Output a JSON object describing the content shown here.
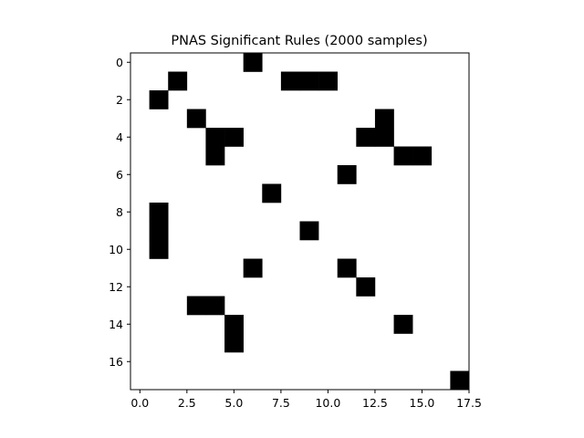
{
  "chart_data": {
    "type": "heatmap",
    "title": "PNAS Significant Rules (2000 samples)",
    "xlabel": "",
    "ylabel": "",
    "n_rows": 18,
    "n_cols": 18,
    "xlim": [
      -0.5,
      17.5
    ],
    "ylim": [
      17.5,
      -0.5
    ],
    "x_ticks": [
      0.0,
      2.5,
      5.0,
      7.5,
      10.0,
      12.5,
      15.0,
      17.5
    ],
    "x_tick_labels": [
      "0.0",
      "2.5",
      "5.0",
      "7.5",
      "10.0",
      "12.5",
      "15.0",
      "17.5"
    ],
    "y_ticks": [
      0,
      2,
      4,
      6,
      8,
      10,
      12,
      14,
      16
    ],
    "y_tick_labels": [
      "0",
      "2",
      "4",
      "6",
      "8",
      "10",
      "12",
      "14",
      "16"
    ],
    "colormap": "binary",
    "on_color": "#000000",
    "off_color": "#ffffff",
    "grid": false,
    "cells": [
      [
        0,
        6
      ],
      [
        1,
        2
      ],
      [
        1,
        8
      ],
      [
        1,
        9
      ],
      [
        1,
        10
      ],
      [
        2,
        1
      ],
      [
        3,
        3
      ],
      [
        3,
        13
      ],
      [
        4,
        4
      ],
      [
        4,
        5
      ],
      [
        4,
        12
      ],
      [
        4,
        13
      ],
      [
        5,
        4
      ],
      [
        5,
        14
      ],
      [
        5,
        15
      ],
      [
        6,
        11
      ],
      [
        7,
        7
      ],
      [
        8,
        1
      ],
      [
        9,
        1
      ],
      [
        9,
        9
      ],
      [
        10,
        1
      ],
      [
        11,
        6
      ],
      [
        11,
        11
      ],
      [
        12,
        12
      ],
      [
        13,
        3
      ],
      [
        13,
        4
      ],
      [
        14,
        5
      ],
      [
        14,
        14
      ],
      [
        15,
        5
      ],
      [
        17,
        17
      ]
    ]
  }
}
